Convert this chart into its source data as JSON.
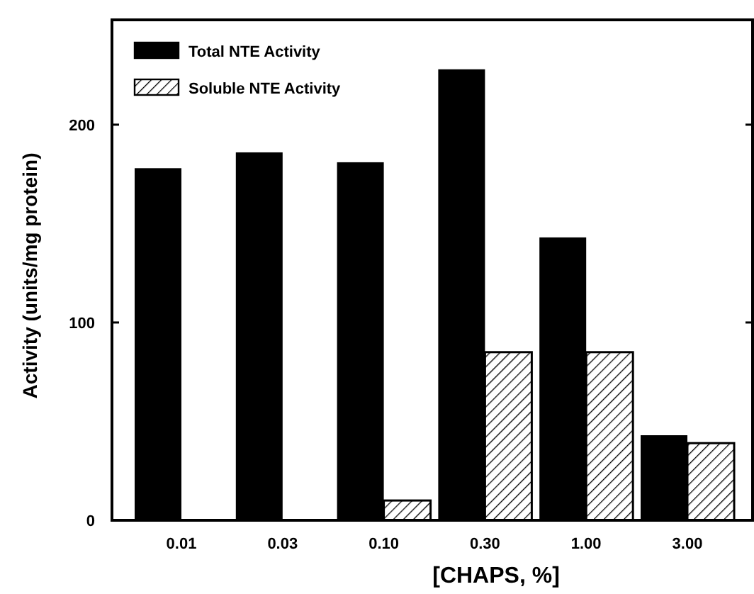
{
  "chart_data": {
    "type": "bar",
    "xlabel": "[CHAPS, %]",
    "ylabel": "Activity (units/mg protein)",
    "categories": [
      "0.01",
      "0.03",
      "0.10",
      "0.30",
      "1.00",
      "3.00"
    ],
    "series": [
      {
        "name": "Total NTE Activity",
        "color": "#000000",
        "values": [
          178,
          186,
          181,
          228,
          143,
          43
        ]
      },
      {
        "name": "Soluble NTE Activity",
        "color": "#000000",
        "values": [
          0,
          0,
          10,
          85,
          85,
          39
        ]
      }
    ],
    "ylim": [
      0,
      253
    ],
    "yticks": [
      0,
      100,
      200
    ],
    "grid": false,
    "legend": "top left"
  }
}
